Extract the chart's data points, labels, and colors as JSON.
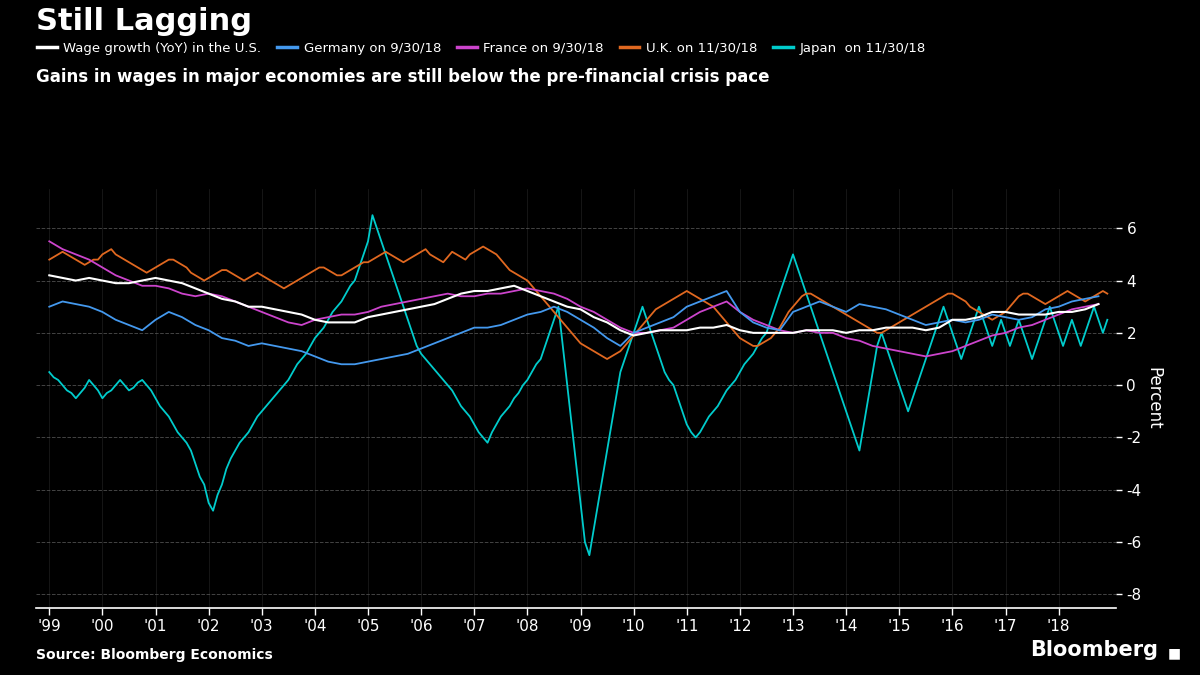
{
  "title": "Still Lagging",
  "subtitle": "Gains in wages in major economies are still below the pre-financial crisis pace",
  "source": "Source: Bloomberg Economics",
  "watermark": "Bloomberg",
  "ylabel": "Percent",
  "background_color": "#000000",
  "grid_color": "#444444",
  "text_color": "#ffffff",
  "ylim": [
    -8.5,
    7.5
  ],
  "yticks": [
    -8,
    -6,
    -4,
    -2,
    0,
    2,
    4,
    6
  ],
  "series_us_color": "#ffffff",
  "series_us_label": "Wage growth (YoY) in the U.S.",
  "series_us_lw": 1.5,
  "series_germany_color": "#4499ee",
  "series_germany_label": "Germany on 9/30/18",
  "series_germany_lw": 1.3,
  "series_france_color": "#cc44cc",
  "series_france_label": "France on 9/30/18",
  "series_france_lw": 1.3,
  "series_uk_color": "#e06820",
  "series_uk_label": "U.K. on 11/30/18",
  "series_uk_lw": 1.3,
  "series_japan_color": "#00cccc",
  "series_japan_label": "Japan  on 11/30/18",
  "series_japan_lw": 1.3
}
